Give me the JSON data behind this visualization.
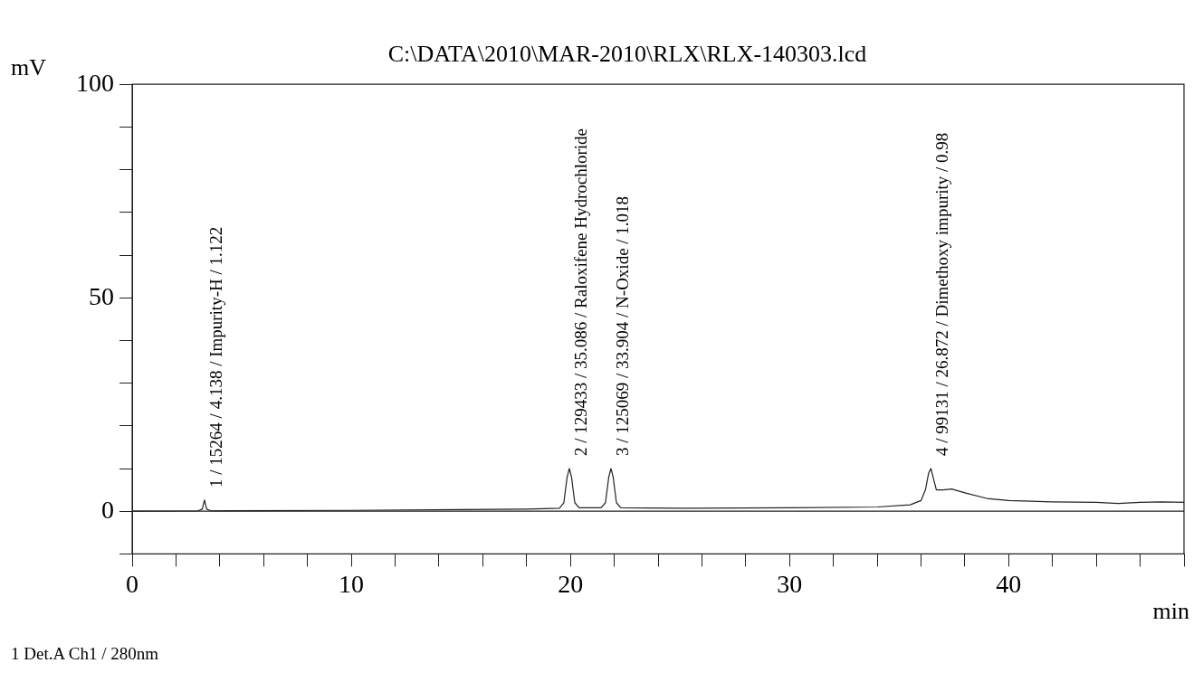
{
  "chart_data": {
    "type": "line",
    "title": "C:\\DATA\\2010\\MAR-2010\\RLX\\RLX-140303.lcd",
    "xlabel": "min",
    "ylabel": "mV",
    "series": [
      {
        "color": "#222222",
        "x": [
          0,
          3.0,
          3.2,
          3.3,
          3.4,
          3.6,
          10,
          18,
          19.5,
          19.7,
          19.85,
          19.95,
          20.05,
          20.2,
          20.4,
          21.4,
          21.6,
          21.75,
          21.85,
          21.95,
          22.1,
          22.3,
          25,
          30,
          34,
          35.5,
          36.0,
          36.2,
          36.35,
          36.45,
          36.55,
          36.7,
          37.0,
          37.4,
          38,
          39,
          40,
          42,
          44,
          45,
          46,
          47,
          48
        ],
        "values": [
          0,
          0.1,
          0.5,
          2.6,
          0.5,
          0.1,
          0.2,
          0.5,
          0.7,
          2,
          8,
          10,
          8,
          2,
          0.8,
          0.8,
          2,
          8,
          10,
          8,
          2,
          0.8,
          0.7,
          0.8,
          1.0,
          1.5,
          2.5,
          5,
          9,
          10,
          8,
          5,
          5.0,
          5.2,
          4.3,
          3.0,
          2.5,
          2.2,
          2.1,
          1.8,
          2.1,
          2.2,
          2.1
        ]
      }
    ],
    "xlim": [
      0,
      48
    ],
    "ylim": [
      -10,
      100
    ],
    "xticks": [
      0,
      {
        "value": 2,
        "label": null
      },
      {
        "value": 4,
        "label": null
      },
      {
        "value": 6,
        "label": null
      },
      {
        "value": 8,
        "label": null
      },
      10,
      {
        "value": 12,
        "label": null
      },
      {
        "value": 14,
        "label": null
      },
      {
        "value": 16,
        "label": null
      },
      {
        "value": 18,
        "label": null
      },
      20,
      {
        "value": 22,
        "label": null
      },
      {
        "value": 24,
        "label": null
      },
      {
        "value": 26,
        "label": null
      },
      {
        "value": 28,
        "label": null
      },
      30,
      {
        "value": 32,
        "label": null
      },
      {
        "value": 34,
        "label": null
      },
      {
        "value": 36,
        "label": null
      },
      {
        "value": 38,
        "label": null
      },
      40,
      {
        "value": 42,
        "label": null
      },
      {
        "value": 44,
        "label": null
      },
      {
        "value": 46,
        "label": null
      },
      {
        "value": 48,
        "label": null
      }
    ],
    "yticks": [
      {
        "value": -10,
        "label": null
      },
      0,
      {
        "value": 10,
        "label": null
      },
      {
        "value": 20,
        "label": null
      },
      {
        "value": 30,
        "label": null
      },
      {
        "value": 40,
        "label": null
      },
      50,
      {
        "value": 60,
        "label": null
      },
      {
        "value": 70,
        "label": null
      },
      {
        "value": 80,
        "label": null
      },
      {
        "value": 90,
        "label": null
      },
      100
    ],
    "grid": false,
    "marker": "none",
    "line_style": "solid",
    "ref_lines": [
      {
        "axis": "y",
        "value": 0,
        "color": "#222222"
      }
    ],
    "annotations": [
      {
        "text": "1 / 15264 / 4.138 / Impurity-H / 1.122",
        "x": 3.3,
        "y": 2.6
      },
      {
        "text": "2 / 129433 / 35.086 / Raloxifene Hydrochloride",
        "x": 19.95,
        "y": 10
      },
      {
        "text": "3 / 125069 / 33.904 / N-Oxide / 1.018",
        "x": 21.85,
        "y": 10
      },
      {
        "text": "4 / 99131 / 26.872 / Dimethoxy impurity / 0.98",
        "x": 36.45,
        "y": 10
      },
      "1 Det.A Ch1 / 280nm"
    ]
  }
}
